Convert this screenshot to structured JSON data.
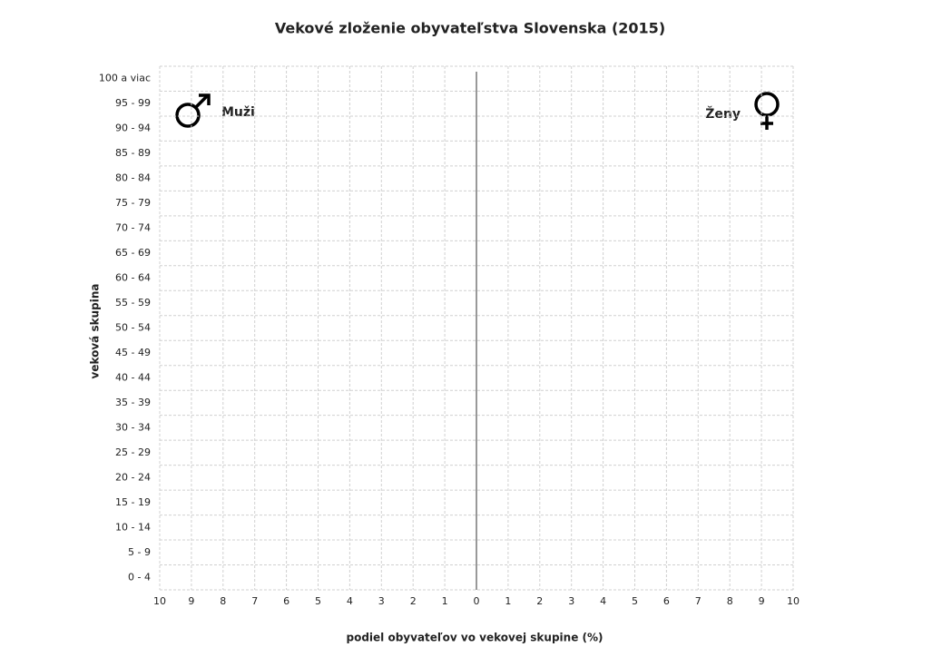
{
  "chart_data": {
    "type": "bar",
    "orientation": "horizontal",
    "title": "Vekové zloženie obyvateľstva Slovenska (2015)",
    "x_label": "podiel obyvateľov vo vekovej skupine (%)",
    "y_label": "veková skupina",
    "categories": [
      "0 - 4",
      "5 - 9",
      "10 - 14",
      "15 - 19",
      "20 - 24",
      "25 - 29",
      "30 - 34",
      "35 - 39",
      "40 - 44",
      "45 - 49",
      "50 - 54",
      "55 - 59",
      "60 - 64",
      "65 - 69",
      "70 - 74",
      "75 - 79",
      "80 - 84",
      "85 - 89",
      "90 - 94",
      "95 - 99",
      "100 a viac"
    ],
    "series": [
      {
        "name": "Muži"
      },
      {
        "name": "Ženy"
      }
    ],
    "xlim": [
      -10,
      10
    ],
    "xticks": [
      {
        "value": -10,
        "label": "10"
      },
      {
        "value": -9,
        "label": "9"
      },
      {
        "value": -8,
        "label": "8"
      },
      {
        "value": -7,
        "label": "7"
      },
      {
        "value": -6,
        "label": "6"
      },
      {
        "value": -5,
        "label": "5"
      },
      {
        "value": -4,
        "label": "4"
      },
      {
        "value": -3,
        "label": "3"
      },
      {
        "value": -2,
        "label": "2"
      },
      {
        "value": -1,
        "label": "1"
      },
      0,
      1,
      2,
      3,
      4,
      5,
      6,
      7,
      8,
      9,
      10
    ],
    "grid": true
  }
}
